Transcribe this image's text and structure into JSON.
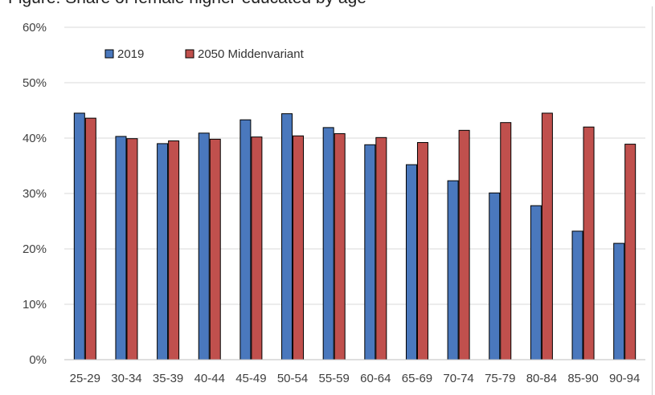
{
  "cut_title": "Figure: Share of female higher-educated by age",
  "chart_data": {
    "type": "bar",
    "title": "",
    "xlabel": "",
    "ylabel": "",
    "ylim": [
      0,
      60
    ],
    "ytick_step": 10,
    "y_tick_format": "{v}%",
    "grid": true,
    "legend_position": "top-left",
    "categories": [
      "25-29",
      "30-34",
      "35-39",
      "40-44",
      "45-49",
      "50-54",
      "55-59",
      "60-64",
      "65-69",
      "70-74",
      "75-79",
      "80-84",
      "85-90",
      "90-94"
    ],
    "series": [
      {
        "name": "2019",
        "color": "#4a78bd",
        "values": [
          44.5,
          40.3,
          39.0,
          40.9,
          43.3,
          44.4,
          41.9,
          38.8,
          35.2,
          32.3,
          30.1,
          27.8,
          23.2,
          21.0
        ]
      },
      {
        "name": "2050 Middenvariant",
        "color": "#c0504d",
        "values": [
          43.6,
          39.9,
          39.5,
          39.8,
          40.2,
          40.4,
          40.8,
          40.1,
          39.2,
          41.4,
          42.8,
          44.5,
          42.0,
          38.9
        ]
      }
    ]
  }
}
